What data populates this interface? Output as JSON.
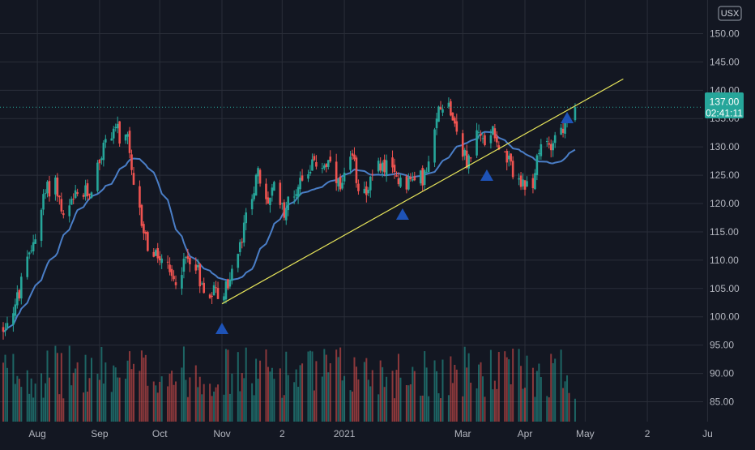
{
  "chart": {
    "currency": "USX",
    "last_price": "137.00",
    "countdown": "02:41:11",
    "colors": {
      "background": "#131722",
      "grid": "#2a2e39",
      "up": "#26a69a",
      "down": "#ef5350",
      "ma": "#4a7ec7",
      "trendline": "#e6e45a",
      "marker": "#1e53b7",
      "price_badge": "#26a69a"
    }
  },
  "chart_data": {
    "type": "candlestick",
    "y_ticks": [
      "85.00",
      "90.00",
      "95.00",
      "100.00",
      "105.00",
      "110.00",
      "115.00",
      "120.00",
      "125.00",
      "130.00",
      "135.00",
      "140.00",
      "145.00",
      "150.00"
    ],
    "x_ticks": [
      "Aug",
      "Sep",
      "Oct",
      "Nov",
      "2",
      "2021",
      "Mar",
      "Apr",
      "May",
      "2",
      "Ju"
    ],
    "ylim": [
      83.5,
      152.5
    ],
    "grid": true,
    "moving_average": true,
    "markers": [
      {
        "date": "2020-11-01",
        "type": "triangle-up"
      },
      {
        "date": "2021-01-30",
        "type": "triangle-up"
      },
      {
        "date": "2021-03-13",
        "type": "triangle-up"
      },
      {
        "date": "2021-04-22",
        "type": "triangle-up"
      }
    ],
    "trendline": {
      "start": {
        "date": "2020-11-01",
        "value": 102.3
      },
      "end": {
        "date": "2021-05-20",
        "value": 142.0
      }
    },
    "last_price": 137.0,
    "volume_colored_by_direction": true
  }
}
